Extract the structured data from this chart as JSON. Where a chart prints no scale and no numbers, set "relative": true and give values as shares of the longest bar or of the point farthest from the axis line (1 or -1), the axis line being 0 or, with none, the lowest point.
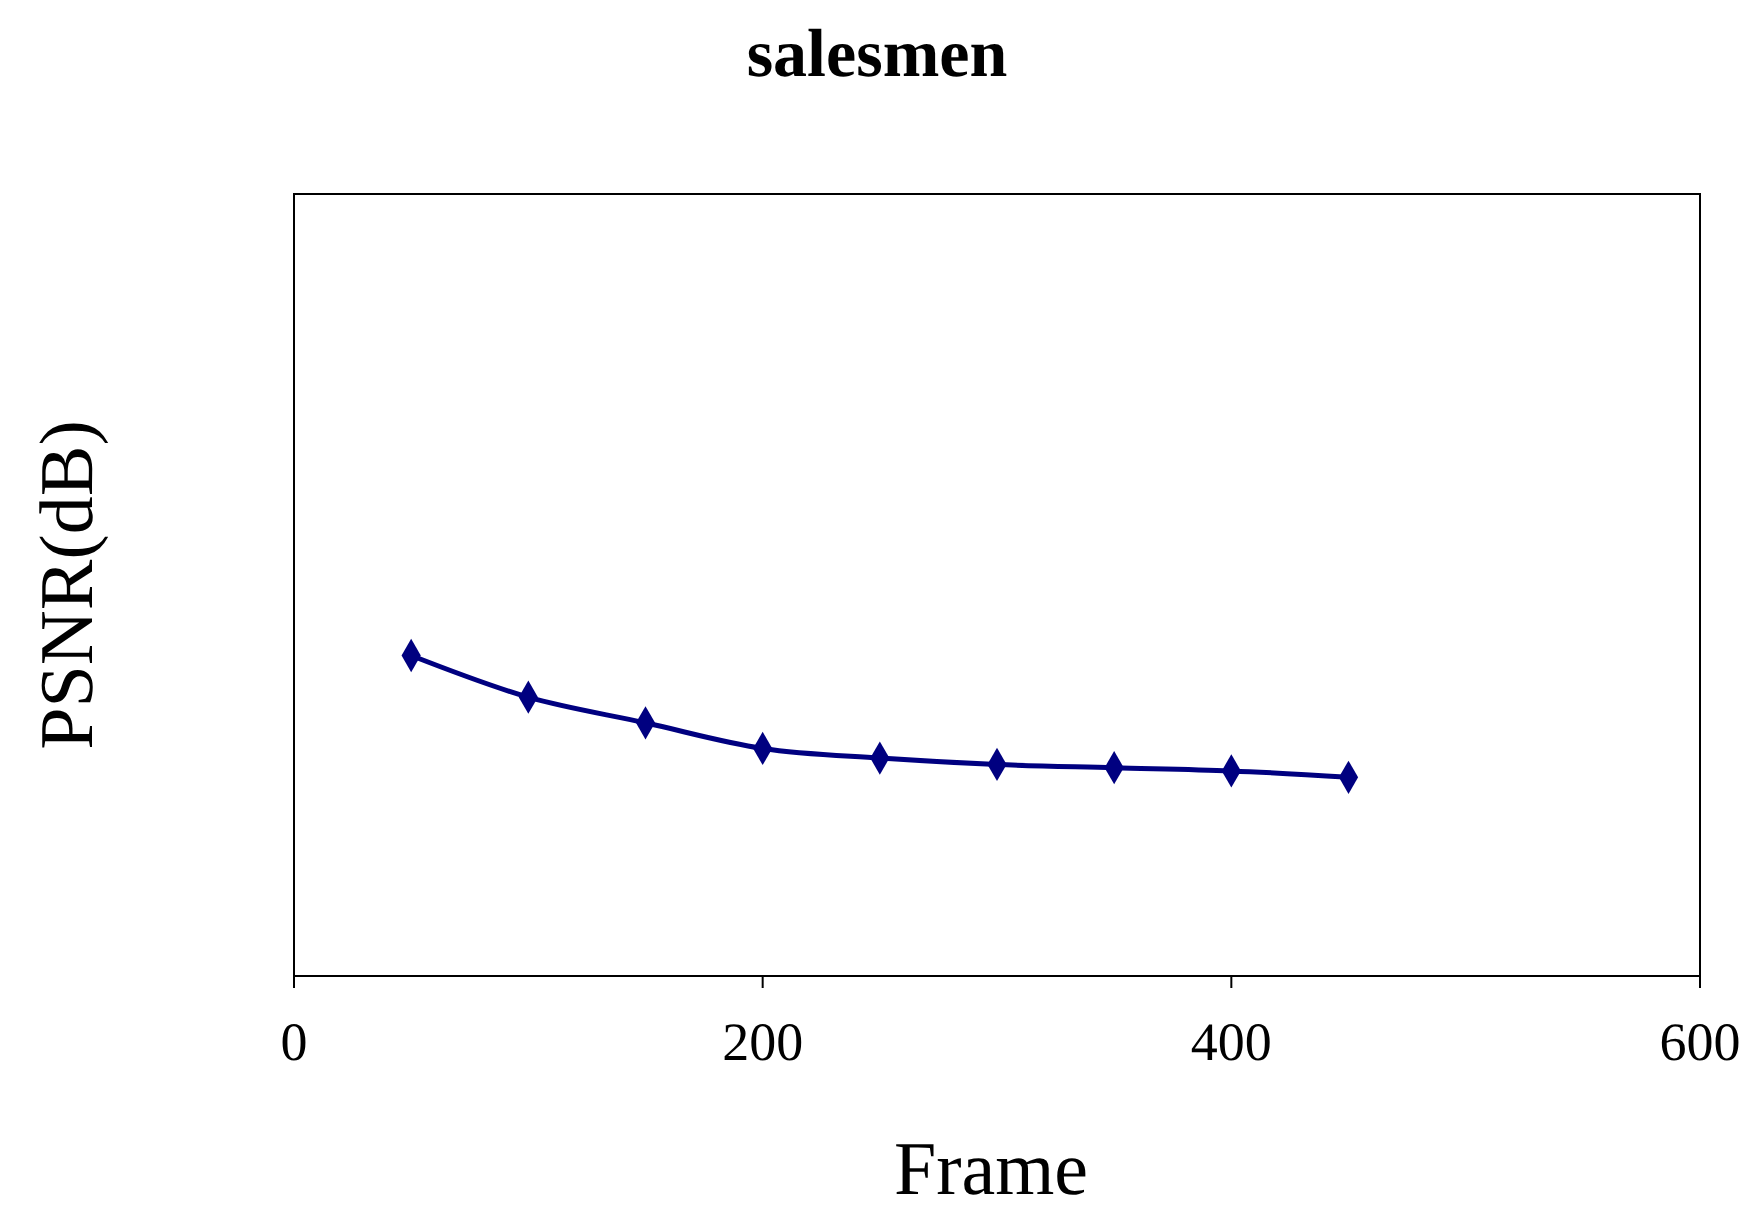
{
  "chart_data": {
    "type": "line",
    "title": "salesmen",
    "xlabel": "Frame",
    "ylabel": "PSNR(dB)",
    "relative": true,
    "x": [
      50,
      100,
      150,
      200,
      250,
      300,
      350,
      400,
      450
    ],
    "series": [
      {
        "color": "#000080",
        "values": [
          1,
          0.87,
          0.79,
          0.71,
          0.68,
          0.66,
          0.65,
          0.64,
          0.62
        ]
      }
    ],
    "xlim": [
      0,
      600
    ],
    "xticks": [
      0,
      200,
      400,
      600
    ],
    "marker": "diamond",
    "line_style": "solid",
    "grid": false
  }
}
